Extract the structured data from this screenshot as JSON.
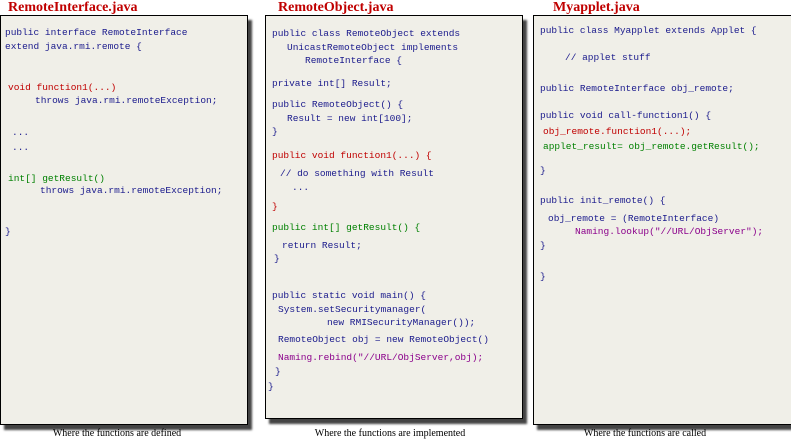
{
  "panels": [
    {
      "title": "RemoteInterface.java",
      "caption": "Where the functions are defined",
      "lines": [
        "public interface RemoteInterface",
        "extend java.rmi.remote {",
        "void function1(...)",
        "throws java.rmi.remoteException;",
        "...",
        "...",
        "int[] getResult()",
        "throws java.rmi.remoteException;",
        "}"
      ]
    },
    {
      "title": "RemoteObject.java",
      "caption": "Where the functions are implemented",
      "lines": [
        "public class RemoteObject extends",
        "UnicastRemoteObject implements",
        "RemoteInterface {",
        "private int[] Result;",
        "public RemoteObject() {",
        "Result = new int[100];",
        "}",
        "public void function1(...) {",
        "// do something with Result",
        "...",
        "}",
        "public int[] getResult() {",
        "return Result;",
        "}",
        "public static void main() {",
        "System.setSecuritymanager(",
        "new RMISecurityManager());",
        "RemoteObject obj = new RemoteObject()",
        "Naming.rebind(\"//URL/ObjServer,obj);",
        "}",
        "}"
      ]
    },
    {
      "title": "Myapplet.java",
      "caption": "Where the functions are called",
      "lines": [
        "public class Myapplet extends Applet {",
        "// applet stuff",
        "public RemoteInterface obj_remote;",
        "public void call-function1() {",
        "obj_remote.function1(...);",
        "applet_result= obj_remote.getResult();",
        "}",
        "public init_remote() {",
        "obj_remote = (RemoteInterface)",
        "Naming.lookup(\"//URL/ObjServer\");",
        "}",
        "}"
      ]
    }
  ]
}
